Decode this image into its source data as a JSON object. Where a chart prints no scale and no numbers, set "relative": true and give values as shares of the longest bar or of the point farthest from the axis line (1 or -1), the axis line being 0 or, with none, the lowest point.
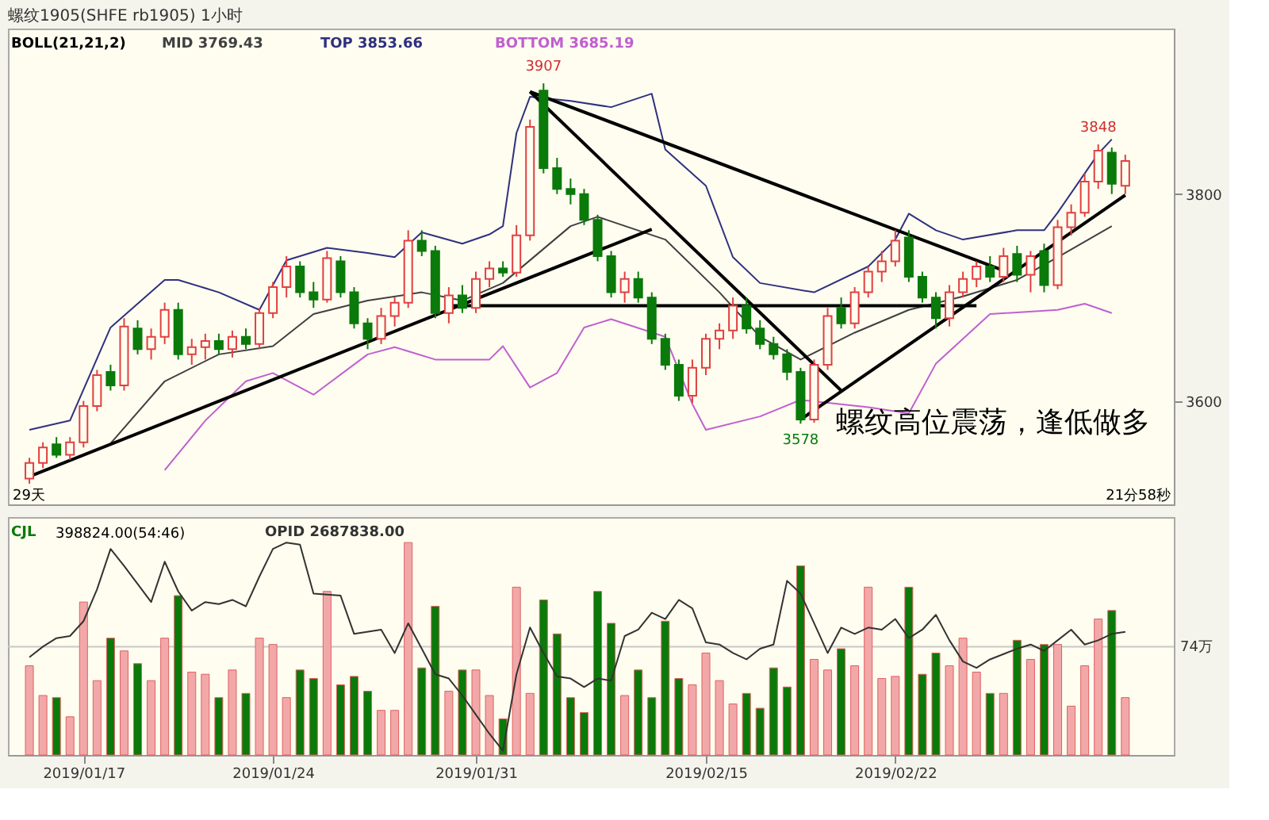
{
  "chart_data": [
    {
      "type": "candlestick",
      "title": "螺纹1905(SHFE rb1905)  1小时",
      "legend_title": "BOLL(21,21,2)",
      "legend": "top left",
      "categories": [
        null,
        null,
        null,
        null,
        "2019/01/17",
        null,
        null,
        null,
        null,
        null,
        null,
        null,
        null,
        null,
        null,
        null,
        null,
        null,
        "2019/01/24",
        null,
        null,
        null,
        null,
        null,
        null,
        null,
        null,
        null,
        null,
        null,
        null,
        null,
        null,
        "2019/01/31",
        null,
        null,
        null,
        null,
        null,
        null,
        null,
        null,
        null,
        null,
        null,
        null,
        null,
        null,
        null,
        null,
        "2019/02/15",
        null,
        null,
        null,
        null,
        null,
        null,
        null,
        null,
        null,
        null,
        null,
        null,
        null,
        "2019/02/22",
        null,
        null,
        null,
        null,
        null,
        null,
        null,
        null,
        null,
        null,
        null,
        null,
        null,
        null,
        null,
        null,
        null
      ],
      "ohlc": [
        [
          3525,
          3545,
          3520,
          3540
        ],
        [
          3540,
          3560,
          3535,
          3555
        ],
        [
          3558,
          3565,
          3545,
          3548
        ],
        [
          3548,
          3565,
          3543,
          3560
        ],
        [
          3560,
          3600,
          3555,
          3595
        ],
        [
          3595,
          3630,
          3590,
          3625
        ],
        [
          3628,
          3635,
          3610,
          3615
        ],
        [
          3615,
          3680,
          3610,
          3672
        ],
        [
          3670,
          3678,
          3645,
          3650
        ],
        [
          3650,
          3670,
          3640,
          3662
        ],
        [
          3662,
          3695,
          3655,
          3688
        ],
        [
          3688,
          3695,
          3640,
          3645
        ],
        [
          3645,
          3660,
          3635,
          3652
        ],
        [
          3652,
          3665,
          3640,
          3658
        ],
        [
          3658,
          3665,
          3645,
          3650
        ],
        [
          3650,
          3668,
          3642,
          3662
        ],
        [
          3662,
          3670,
          3650,
          3655
        ],
        [
          3655,
          3690,
          3650,
          3685
        ],
        [
          3685,
          3715,
          3680,
          3710
        ],
        [
          3710,
          3740,
          3700,
          3730
        ],
        [
          3730,
          3735,
          3700,
          3705
        ],
        [
          3705,
          3715,
          3690,
          3698
        ],
        [
          3698,
          3745,
          3695,
          3738
        ],
        [
          3735,
          3740,
          3700,
          3705
        ],
        [
          3705,
          3710,
          3670,
          3675
        ],
        [
          3675,
          3680,
          3650,
          3660
        ],
        [
          3660,
          3690,
          3655,
          3682
        ],
        [
          3682,
          3700,
          3672,
          3695
        ],
        [
          3695,
          3765,
          3690,
          3755
        ],
        [
          3755,
          3765,
          3740,
          3745
        ],
        [
          3745,
          3750,
          3680,
          3685
        ],
        [
          3685,
          3710,
          3675,
          3702
        ],
        [
          3702,
          3712,
          3685,
          3690
        ],
        [
          3690,
          3725,
          3685,
          3718
        ],
        [
          3718,
          3735,
          3710,
          3728
        ],
        [
          3728,
          3735,
          3720,
          3724
        ],
        [
          3724,
          3770,
          3720,
          3760
        ],
        [
          3760,
          3872,
          3755,
          3865
        ],
        [
          3900,
          3907,
          3820,
          3825
        ],
        [
          3825,
          3835,
          3800,
          3805
        ],
        [
          3805,
          3815,
          3790,
          3800
        ],
        [
          3800,
          3805,
          3770,
          3775
        ],
        [
          3775,
          3780,
          3735,
          3740
        ],
        [
          3740,
          3745,
          3700,
          3705
        ],
        [
          3705,
          3725,
          3695,
          3718
        ],
        [
          3718,
          3725,
          3695,
          3700
        ],
        [
          3700,
          3705,
          3655,
          3660
        ],
        [
          3660,
          3665,
          3630,
          3635
        ],
        [
          3635,
          3640,
          3600,
          3605
        ],
        [
          3605,
          3640,
          3598,
          3632
        ],
        [
          3632,
          3665,
          3625,
          3660
        ],
        [
          3660,
          3675,
          3650,
          3668
        ],
        [
          3668,
          3700,
          3660,
          3692
        ],
        [
          3692,
          3700,
          3665,
          3670
        ],
        [
          3670,
          3678,
          3650,
          3655
        ],
        [
          3655,
          3662,
          3640,
          3645
        ],
        [
          3645,
          3650,
          3620,
          3628
        ],
        [
          3628,
          3632,
          3578,
          3582
        ],
        [
          3582,
          3640,
          3579,
          3635
        ],
        [
          3635,
          3690,
          3630,
          3682
        ],
        [
          3690,
          3700,
          3670,
          3675
        ],
        [
          3675,
          3710,
          3670,
          3705
        ],
        [
          3705,
          3730,
          3700,
          3725
        ],
        [
          3725,
          3745,
          3715,
          3735
        ],
        [
          3735,
          3765,
          3730,
          3755
        ],
        [
          3758,
          3765,
          3715,
          3720
        ],
        [
          3720,
          3725,
          3695,
          3700
        ],
        [
          3700,
          3705,
          3670,
          3680
        ],
        [
          3680,
          3712,
          3672,
          3705
        ],
        [
          3705,
          3725,
          3700,
          3718
        ],
        [
          3718,
          3735,
          3710,
          3730
        ],
        [
          3730,
          3740,
          3715,
          3720
        ],
        [
          3720,
          3748,
          3715,
          3740
        ],
        [
          3742,
          3750,
          3715,
          3722
        ],
        [
          3722,
          3745,
          3705,
          3740
        ],
        [
          3745,
          3752,
          3705,
          3712
        ],
        [
          3712,
          3775,
          3708,
          3768
        ],
        [
          3768,
          3790,
          3760,
          3782
        ],
        [
          3782,
          3820,
          3778,
          3812
        ],
        [
          3812,
          3848,
          3805,
          3842
        ],
        [
          3840,
          3845,
          3800,
          3810
        ],
        [
          3808,
          3838,
          3800,
          3832
        ]
      ],
      "colors": [
        "#e04040",
        "#e04040",
        "#0a7a0a",
        "#e04040",
        "#e04040",
        "#e04040",
        "#0a7a0a",
        "#e04040",
        "#0a7a0a",
        "#e04040",
        "#e04040",
        "#0a7a0a",
        "#e04040",
        "#e04040",
        "#0a7a0a",
        "#e04040",
        "#0a7a0a",
        "#e04040",
        "#e04040",
        "#e04040",
        "#0a7a0a",
        "#0a7a0a",
        "#e04040",
        "#0a7a0a",
        "#0a7a0a",
        "#0a7a0a",
        "#e04040",
        "#e04040",
        "#e04040",
        "#0a7a0a",
        "#0a7a0a",
        "#e04040",
        "#0a7a0a",
        "#e04040",
        "#e04040",
        "#0a7a0a",
        "#e04040",
        "#e04040",
        "#0a7a0a",
        "#0a7a0a",
        "#0a7a0a",
        "#0a7a0a",
        "#0a7a0a",
        "#0a7a0a",
        "#e04040",
        "#0a7a0a",
        "#0a7a0a",
        "#0a7a0a",
        "#0a7a0a",
        "#e04040",
        "#e04040",
        "#e04040",
        "#e04040",
        "#0a7a0a",
        "#0a7a0a",
        "#0a7a0a",
        "#0a7a0a",
        "#0a7a0a",
        "#e04040",
        "#e04040",
        "#0a7a0a",
        "#e04040",
        "#e04040",
        "#e04040",
        "#e04040",
        "#0a7a0a",
        "#0a7a0a",
        "#0a7a0a",
        "#e04040",
        "#e04040",
        "#e04040",
        "#0a7a0a",
        "#e04040",
        "#0a7a0a",
        "#e04040",
        "#0a7a0a",
        "#e04040",
        "#e04040",
        "#e04040",
        "#e04040",
        "#0a7a0a",
        "#e04040"
      ],
      "series": [
        {
          "name": "MID 3769.43",
          "type": "line",
          "color": "#404040",
          "values": [
            null,
            null,
            null,
            null,
            null,
            null,
            3559,
            null,
            null,
            null,
            3619,
            null,
            null,
            null,
            3645,
            null,
            null,
            null,
            3653,
            null,
            null,
            3684,
            null,
            null,
            null,
            3697,
            null,
            null,
            null,
            3705,
            null,
            null,
            3697,
            null,
            null,
            3714,
            null,
            null,
            null,
            null,
            3769,
            null,
            3778,
            null,
            null,
            null,
            null,
            3756,
            null,
            null,
            null,
            3705,
            null,
            null,
            3662,
            null,
            null,
            3640,
            null,
            null,
            null,
            3666,
            null,
            null,
            null,
            3688,
            null,
            null,
            null,
            3701,
            null,
            null,
            null,
            3717,
            null,
            null,
            3739,
            null,
            null,
            null,
            3769,
            null
          ]
        },
        {
          "name": "TOP 3853.66",
          "type": "line",
          "color": "#303080",
          "values": [
            3572,
            null,
            null,
            3581,
            null,
            null,
            3671,
            null,
            null,
            null,
            3717,
            3717,
            null,
            null,
            3705,
            null,
            null,
            3688,
            null,
            3736,
            null,
            null,
            3748,
            null,
            null,
            3743,
            null,
            3739,
            null,
            3763,
            null,
            null,
            3752,
            null,
            3761,
            3769,
            3859,
            3894,
            null,
            null,
            3890,
            null,
            null,
            3884,
            null,
            null,
            3897,
            3843,
            null,
            null,
            3808,
            null,
            3739,
            null,
            3714,
            null,
            null,
            null,
            3705,
            null,
            null,
            null,
            3730,
            null,
            3756,
            3781,
            null,
            3765,
            null,
            3756,
            null,
            null,
            null,
            3765,
            null,
            3765,
            3782,
            null,
            null,
            3839,
            3853,
            null
          ]
        },
        {
          "name": "BOTTOM 3685.19",
          "type": "line",
          "color": "#c060d0",
          "values": [
            null,
            null,
            null,
            null,
            null,
            null,
            null,
            null,
            null,
            null,
            3533,
            null,
            null,
            3581,
            null,
            null,
            3619,
            null,
            3627,
            null,
            null,
            3606,
            null,
            null,
            null,
            3645,
            null,
            3652,
            null,
            null,
            3640,
            null,
            null,
            null,
            3640,
            3653,
            null,
            3613,
            null,
            3627,
            null,
            3671,
            null,
            3679,
            null,
            null,
            null,
            3662,
            null,
            3597,
            3572,
            null,
            null,
            null,
            3585,
            null,
            null,
            3601,
            null,
            null,
            null,
            null,
            3594,
            null,
            null,
            3588,
            null,
            3636,
            null,
            null,
            null,
            3684,
            null,
            null,
            null,
            null,
            3688,
            null,
            3694,
            null,
            3685,
            null
          ]
        },
        {
          "type": "line",
          "color": "#000000",
          "values": [
            3527,
            null,
            null,
            null,
            null,
            null,
            null,
            null,
            null,
            null,
            null,
            null,
            null,
            null,
            null,
            null,
            null,
            null,
            null,
            null,
            null,
            null,
            null,
            null,
            null,
            null,
            null,
            null,
            null,
            null,
            null,
            null,
            null,
            null,
            null,
            null,
            null,
            null,
            null,
            null,
            null,
            null,
            null,
            null,
            null,
            null,
            3766,
            null,
            null,
            null,
            null,
            null,
            null,
            null,
            null,
            null,
            null,
            null,
            null,
            null,
            null,
            null,
            null,
            null,
            null,
            null,
            null,
            null,
            null,
            null,
            null,
            null,
            null,
            null,
            null,
            null,
            null,
            null,
            null,
            null,
            null,
            null
          ]
        },
        {
          "type": "line",
          "color": "#000000",
          "values": [
            null,
            null,
            null,
            null,
            null,
            null,
            null,
            null,
            null,
            null,
            null,
            null,
            null,
            null,
            null,
            null,
            null,
            null,
            null,
            null,
            null,
            null,
            null,
            null,
            null,
            null,
            null,
            null,
            null,
            null,
            null,
            null,
            null,
            null,
            null,
            null,
            null,
            3899,
            null,
            null,
            null,
            null,
            null,
            null,
            null,
            null,
            null,
            null,
            null,
            null,
            null,
            null,
            null,
            null,
            null,
            null,
            null,
            null,
            null,
            null,
            3610,
            null,
            null,
            null,
            null,
            null,
            null,
            null,
            null,
            null,
            null,
            null,
            null,
            null,
            null,
            null,
            null,
            null,
            null,
            null,
            null,
            null
          ]
        },
        {
          "type": "line",
          "color": "#000000",
          "values": [
            null,
            null,
            null,
            null,
            null,
            null,
            null,
            null,
            null,
            null,
            null,
            null,
            null,
            null,
            null,
            null,
            null,
            null,
            null,
            null,
            null,
            null,
            null,
            null,
            null,
            null,
            null,
            null,
            null,
            null,
            null,
            null,
            null,
            null,
            null,
            null,
            null,
            3899,
            null,
            null,
            null,
            null,
            null,
            null,
            null,
            null,
            null,
            null,
            null,
            null,
            null,
            null,
            null,
            null,
            null,
            null,
            null,
            null,
            null,
            null,
            null,
            null,
            null,
            null,
            null,
            null,
            null,
            null,
            null,
            null,
            null,
            null,
            3726,
            null,
            null,
            null,
            null,
            null,
            null,
            null,
            null,
            null
          ]
        },
        {
          "type": "line",
          "color": "#000000",
          "values": [
            null,
            null,
            null,
            null,
            null,
            null,
            null,
            null,
            null,
            null,
            null,
            null,
            null,
            null,
            null,
            null,
            null,
            null,
            null,
            null,
            null,
            null,
            null,
            null,
            null,
            null,
            null,
            null,
            null,
            null,
            null,
            3692,
            null,
            null,
            null,
            null,
            null,
            null,
            null,
            null,
            null,
            null,
            null,
            null,
            null,
            null,
            null,
            null,
            null,
            null,
            null,
            null,
            null,
            null,
            null,
            null,
            null,
            null,
            null,
            null,
            null,
            null,
            null,
            null,
            null,
            null,
            null,
            null,
            null,
            null,
            3692,
            null,
            null,
            null,
            null,
            null,
            null,
            null,
            null,
            null,
            null,
            null
          ]
        },
        {
          "type": "line",
          "color": "#000000",
          "values": [
            null,
            null,
            null,
            null,
            null,
            null,
            null,
            null,
            null,
            null,
            null,
            null,
            null,
            null,
            null,
            null,
            null,
            null,
            null,
            null,
            null,
            null,
            null,
            null,
            null,
            null,
            null,
            null,
            null,
            null,
            null,
            null,
            null,
            null,
            null,
            null,
            null,
            null,
            null,
            null,
            null,
            null,
            null,
            null,
            null,
            null,
            null,
            null,
            null,
            null,
            null,
            null,
            null,
            null,
            null,
            null,
            null,
            3582,
            null,
            null,
            null,
            null,
            null,
            null,
            null,
            null,
            null,
            null,
            null,
            null,
            null,
            null,
            null,
            null,
            null,
            null,
            null,
            null,
            null,
            null,
            null,
            3799
          ]
        }
      ],
      "annotations": [
        {
          "text": "3907",
          "y": 3907
        },
        {
          "text": "3578",
          "y": 3578
        },
        {
          "text": "3848",
          "y": 3848
        },
        "螺纹高位震荡，逢低做多",
        "29天",
        "21分58秒"
      ],
      "ylim": [
        3500,
        3960
      ],
      "yticks": [
        3600,
        3800
      ],
      "tick_labels": "y"
    },
    {
      "type": "bar",
      "relative": true,
      "legend": "top left",
      "categories": [
        null,
        null,
        null,
        null,
        "2019/01/17",
        null,
        null,
        null,
        null,
        null,
        null,
        null,
        null,
        null,
        null,
        null,
        null,
        null,
        "2019/01/24",
        null,
        null,
        null,
        null,
        null,
        null,
        null,
        null,
        null,
        null,
        null,
        null,
        null,
        null,
        "2019/01/31",
        null,
        null,
        null,
        null,
        null,
        null,
        null,
        null,
        null,
        null,
        null,
        null,
        null,
        null,
        null,
        null,
        "2019/02/15",
        null,
        null,
        null,
        null,
        null,
        null,
        null,
        null,
        null,
        null,
        null,
        null,
        null,
        "2019/02/22",
        null,
        null,
        null,
        null,
        null,
        null,
        null,
        null,
        null,
        null,
        null,
        null,
        null,
        null,
        null,
        null,
        null
      ],
      "series": [
        {
          "name": "CJL",
          "type": "bar",
          "color": "#0a7a0a",
          "colors": [
            "#f2a8a8",
            "#f2a8a8",
            "#0a7a0a",
            "#f2a8a8",
            "#f2a8a8",
            "#f2a8a8",
            "#0a7a0a",
            "#f2a8a8",
            "#0a7a0a",
            "#f2a8a8",
            "#f2a8a8",
            "#0a7a0a",
            "#f2a8a8",
            "#f2a8a8",
            "#0a7a0a",
            "#f2a8a8",
            "#0a7a0a",
            "#f2a8a8",
            "#f2a8a8",
            "#f2a8a8",
            "#0a7a0a",
            "#0a7a0a",
            "#f2a8a8",
            "#0a7a0a",
            "#0a7a0a",
            "#0a7a0a",
            "#f2a8a8",
            "#f2a8a8",
            "#f2a8a8",
            "#0a7a0a",
            "#0a7a0a",
            "#f2a8a8",
            "#0a7a0a",
            "#f2a8a8",
            "#f2a8a8",
            "#0a7a0a",
            "#f2a8a8",
            "#f2a8a8",
            "#0a7a0a",
            "#0a7a0a",
            "#0a7a0a",
            "#0a7a0a",
            "#0a7a0a",
            "#0a7a0a",
            "#f2a8a8",
            "#0a7a0a",
            "#0a7a0a",
            "#0a7a0a",
            "#0a7a0a",
            "#f2a8a8",
            "#f2a8a8",
            "#f2a8a8",
            "#f2a8a8",
            "#0a7a0a",
            "#0a7a0a",
            "#0a7a0a",
            "#0a7a0a",
            "#0a7a0a",
            "#f2a8a8",
            "#f2a8a8",
            "#0a7a0a",
            "#f2a8a8",
            "#f2a8a8",
            "#f2a8a8",
            "#f2a8a8",
            "#0a7a0a",
            "#0a7a0a",
            "#0a7a0a",
            "#f2a8a8",
            "#f2a8a8",
            "#f2a8a8",
            "#0a7a0a",
            "#f2a8a8",
            "#0a7a0a",
            "#f2a8a8",
            "#0a7a0a",
            "#f2a8a8",
            "#f2a8a8",
            "#f2a8a8",
            "#f2a8a8",
            "#0a7a0a",
            "#f2a8a8"
          ],
          "values": [
            0.42,
            0.28,
            0.27,
            0.18,
            0.72,
            0.35,
            0.55,
            0.49,
            0.43,
            0.35,
            0.55,
            0.75,
            0.39,
            0.38,
            0.27,
            0.4,
            0.29,
            0.55,
            0.52,
            0.27,
            0.4,
            0.36,
            0.77,
            0.33,
            0.37,
            0.3,
            0.21,
            0.21,
            1.0,
            0.41,
            0.7,
            0.3,
            0.4,
            0.4,
            0.28,
            0.17,
            0.79,
            0.29,
            0.73,
            0.57,
            0.27,
            0.2,
            0.77,
            0.62,
            0.28,
            0.4,
            0.27,
            0.63,
            0.36,
            0.33,
            0.48,
            0.35,
            0.24,
            0.29,
            0.22,
            0.41,
            0.32,
            0.89,
            0.45,
            0.4,
            0.5,
            0.42,
            0.79,
            0.36,
            0.37,
            0.79,
            0.38,
            0.48,
            0.42,
            0.55,
            0.39,
            0.29,
            0.29,
            0.54,
            0.45,
            0.52,
            0.52,
            0.23,
            0.42,
            0.64,
            0.68,
            0.27
          ]
        },
        {
          "name": "OPID 2687838.00",
          "type": "line",
          "color": "#333333",
          "values": [
            0.46,
            0.51,
            0.55,
            0.56,
            0.63,
            0.78,
            0.97,
            0.89,
            null,
            0.72,
            0.91,
            0.77,
            0.68,
            0.72,
            0.71,
            0.73,
            0.7,
            0.84,
            0.97,
            1.0,
            0.99,
            0.76,
            null,
            0.75,
            0.57,
            null,
            0.59,
            0.48,
            0.62,
            0.5,
            0.38,
            0.36,
            0.28,
            0.19,
            0.1,
            0.02,
            0.38,
            0.6,
            0.48,
            0.37,
            0.36,
            0.32,
            0.36,
            0.35,
            0.56,
            0.59,
            0.67,
            0.64,
            0.73,
            0.69,
            0.53,
            0.52,
            0.48,
            0.45,
            0.5,
            0.52,
            0.82,
            0.76,
            0.62,
            0.48,
            0.6,
            0.57,
            0.6,
            0.59,
            0.64,
            0.55,
            0.59,
            0.66,
            0.54,
            0.44,
            0.41,
            0.45,
            null,
            0.5,
            0.52,
            0.49,
            0.54,
            0.59,
            0.52,
            0.54,
            0.57,
            0.58
          ]
        }
      ],
      "ref_lines": [
        {
          "axis": "y",
          "value": 0.51,
          "label": "74万"
        }
      ],
      "annotations": [
        "398824.00(54:46)"
      ],
      "tick_labels": "x"
    }
  ]
}
